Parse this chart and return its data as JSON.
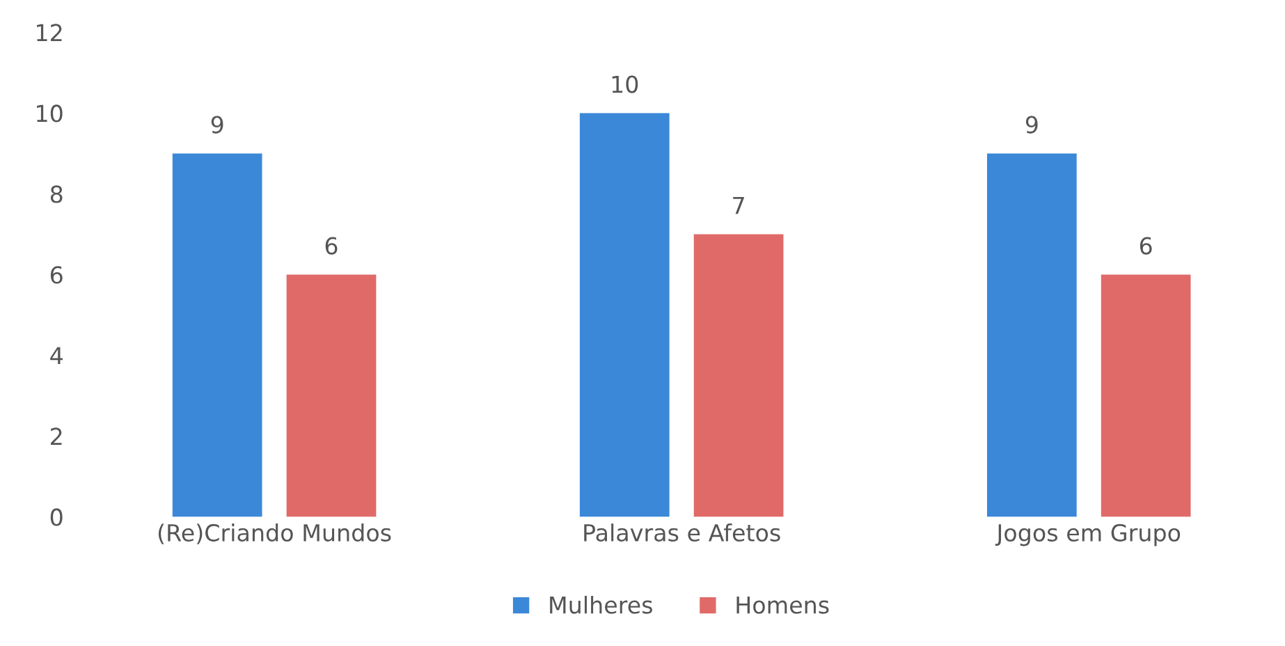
{
  "chart_data": {
    "type": "bar",
    "categories": [
      "(Re)Criando Mundos",
      "Palavras e Afetos",
      "Jogos em Grupo"
    ],
    "series": [
      {
        "name": "Mulheres",
        "color": "#3b88d8",
        "values": [
          9,
          10,
          9
        ]
      },
      {
        "name": "Homens",
        "color": "#e06a68",
        "values": [
          6,
          7,
          6
        ]
      }
    ],
    "ylim": [
      0,
      12
    ],
    "yticks": [
      0,
      2,
      4,
      6,
      8,
      10,
      12
    ],
    "data_labels": true,
    "legend": "bottom",
    "grid": false
  }
}
